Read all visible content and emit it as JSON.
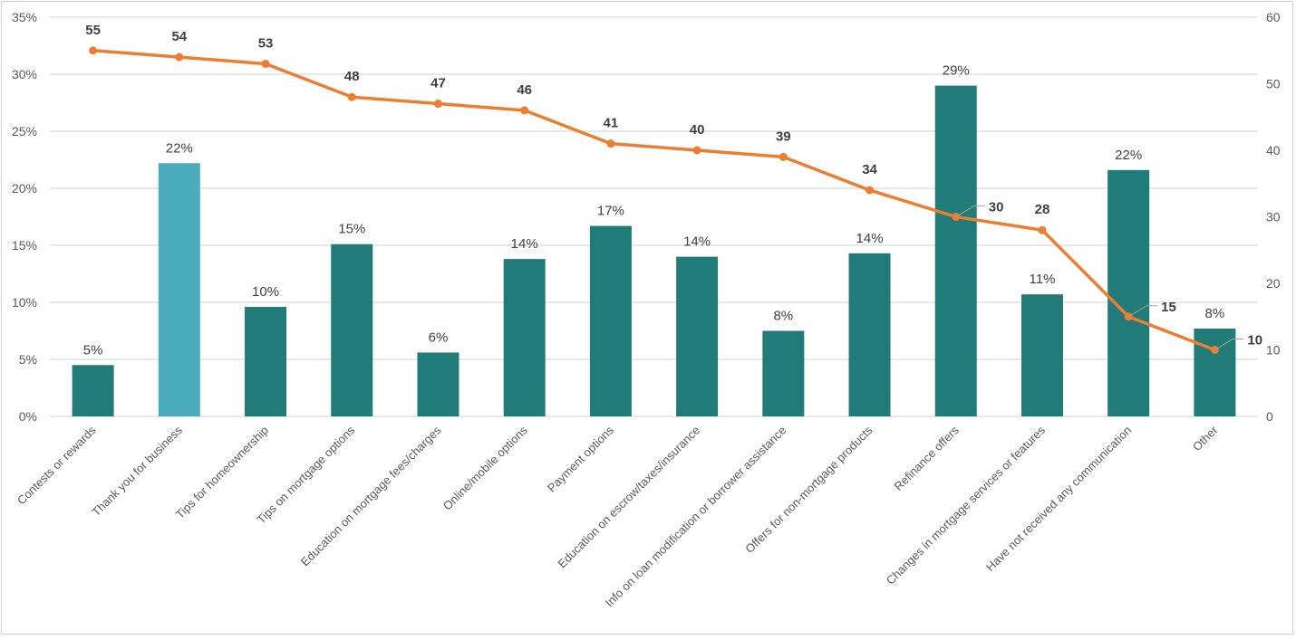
{
  "chart_data": {
    "type": "bar+line",
    "title": "",
    "categories": [
      "Contests or rewards",
      "Thank you for business",
      "Tips for homeownership",
      "Tips on mortgage options",
      "Education on mortgage fees/charges",
      "Online/mobile options",
      "Payment options",
      "Education on escrow/taxes/insurance",
      "Info on loan modification or borrower assistance",
      "Offers for non-mortgage products",
      "Refinance offers",
      "Changes in mortgage services or features",
      "Have not received any communication",
      "Other"
    ],
    "bar_series": {
      "axis": "left",
      "values": [
        4.5,
        22.2,
        9.6,
        15.1,
        5.6,
        13.8,
        16.7,
        14.0,
        7.5,
        14.3,
        29.0,
        10.7,
        21.6,
        7.7
      ],
      "labels": [
        "5%",
        "22%",
        "10%",
        "15%",
        "6%",
        "14%",
        "17%",
        "14%",
        "8%",
        "14%",
        "29%",
        "11%",
        "22%",
        "8%"
      ],
      "color": "#217B79",
      "highlight_index": 1,
      "highlight_color": "#4BACBB"
    },
    "line_series": {
      "axis": "right",
      "values": [
        55,
        54,
        53,
        48,
        47,
        46,
        41,
        40,
        39,
        34,
        30,
        28,
        15,
        10
      ],
      "labels": [
        "55",
        "54",
        "53",
        "48",
        "47",
        "46",
        "41",
        "40",
        "39",
        "34",
        "30",
        "28",
        "15",
        "10"
      ],
      "color": "#ED7D31"
    },
    "left_axis": {
      "ylim": [
        0,
        35
      ],
      "ticks": [
        "0%",
        "5%",
        "10%",
        "15%",
        "20%",
        "25%",
        "30%",
        "35%"
      ]
    },
    "right_axis": {
      "ylim": [
        0,
        60
      ],
      "ticks": [
        "0",
        "10",
        "20",
        "30",
        "40",
        "50",
        "60"
      ]
    },
    "grid": true,
    "legend": "none"
  }
}
